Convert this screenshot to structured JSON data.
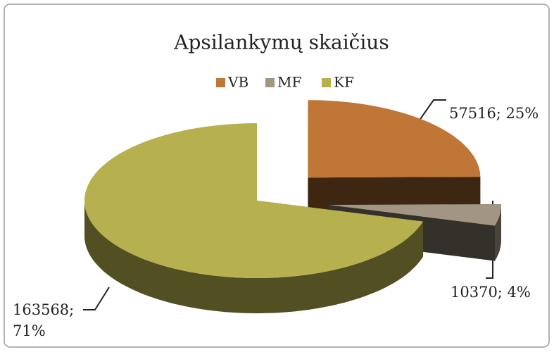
{
  "chart_data": {
    "type": "pie",
    "title": "Apsilankymų skaičius",
    "categories": [
      "VB",
      "MF",
      "KF"
    ],
    "values": [
      57516,
      10370,
      163568
    ],
    "value_labels": [
      "57516; 25%",
      "10370; 4%",
      "163568; 71%"
    ],
    "colors": [
      "#bf7637",
      "#a39584",
      "#b7b04e"
    ],
    "legend": "top"
  }
}
